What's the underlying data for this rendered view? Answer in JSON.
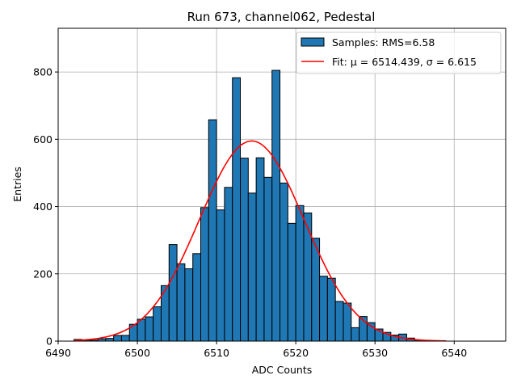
{
  "chart_data": {
    "type": "bar",
    "title": "Run 673, channel062, Pedestal",
    "xlabel": "ADC Counts",
    "ylabel": "Entries",
    "xlim": [
      6490,
      6546.5
    ],
    "ylim": [
      0,
      930
    ],
    "xticks": [
      6490,
      6500,
      6510,
      6520,
      6530,
      6540
    ],
    "yticks": [
      0,
      200,
      400,
      600,
      800
    ],
    "grid": true,
    "legend_position": "upper-right",
    "bin_width": 1,
    "histogram": {
      "name": "Samples: RMS=6.58",
      "color": "#1f77b4",
      "bins": [
        {
          "x": 6492,
          "y": 5
        },
        {
          "x": 6493,
          "y": 3
        },
        {
          "x": 6494,
          "y": 3
        },
        {
          "x": 6495,
          "y": 7
        },
        {
          "x": 6496,
          "y": 8
        },
        {
          "x": 6497,
          "y": 17
        },
        {
          "x": 6498,
          "y": 17
        },
        {
          "x": 6499,
          "y": 50
        },
        {
          "x": 6500,
          "y": 65
        },
        {
          "x": 6501,
          "y": 72
        },
        {
          "x": 6502,
          "y": 102
        },
        {
          "x": 6503,
          "y": 165
        },
        {
          "x": 6504,
          "y": 287
        },
        {
          "x": 6505,
          "y": 230
        },
        {
          "x": 6506,
          "y": 215
        },
        {
          "x": 6507,
          "y": 260
        },
        {
          "x": 6508,
          "y": 397
        },
        {
          "x": 6509,
          "y": 658
        },
        {
          "x": 6510,
          "y": 390
        },
        {
          "x": 6511,
          "y": 457
        },
        {
          "x": 6512,
          "y": 783
        },
        {
          "x": 6513,
          "y": 544
        },
        {
          "x": 6514,
          "y": 440
        },
        {
          "x": 6515,
          "y": 545
        },
        {
          "x": 6516,
          "y": 487
        },
        {
          "x": 6517,
          "y": 805
        },
        {
          "x": 6518,
          "y": 470
        },
        {
          "x": 6519,
          "y": 350
        },
        {
          "x": 6520,
          "y": 403
        },
        {
          "x": 6521,
          "y": 381
        },
        {
          "x": 6522,
          "y": 306
        },
        {
          "x": 6523,
          "y": 193
        },
        {
          "x": 6524,
          "y": 187
        },
        {
          "x": 6525,
          "y": 118
        },
        {
          "x": 6526,
          "y": 113
        },
        {
          "x": 6527,
          "y": 40
        },
        {
          "x": 6528,
          "y": 73
        },
        {
          "x": 6529,
          "y": 55
        },
        {
          "x": 6530,
          "y": 36
        },
        {
          "x": 6531,
          "y": 26
        },
        {
          "x": 6532,
          "y": 18
        },
        {
          "x": 6533,
          "y": 21
        },
        {
          "x": 6534,
          "y": 9
        },
        {
          "x": 6535,
          "y": 3
        }
      ]
    },
    "fit": {
      "name": "Fit: μ = 6514.439, σ = 6.615",
      "color": "#ff0000",
      "mu": 6514.439,
      "sigma": 6.615,
      "amplitude": 595,
      "x_range": [
        6492,
        6539
      ]
    }
  }
}
